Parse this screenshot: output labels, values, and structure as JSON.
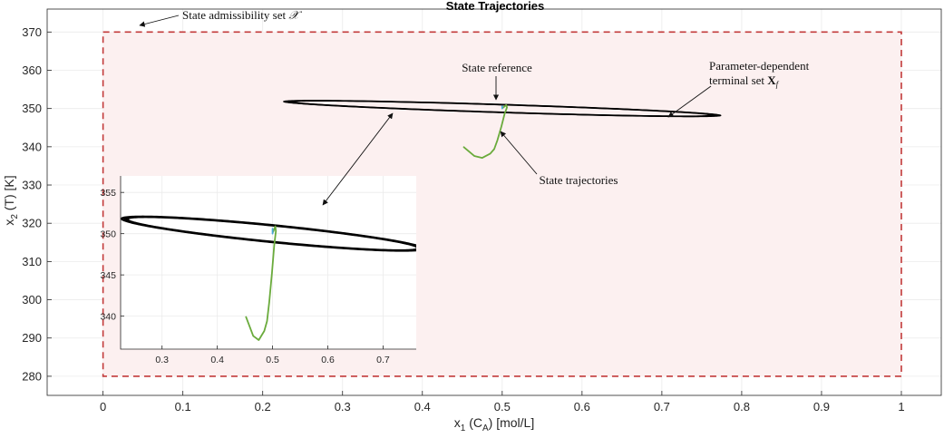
{
  "chart_data": {
    "type": "line",
    "title": "State Trajectories",
    "xlabel": "x",
    "xlabel_sub": "1",
    "xlabel_rest": " (C",
    "xlabel_sub2": "A",
    "xlabel_end": ") [mol/L]",
    "ylabel": "x",
    "ylabel_sub": "2",
    "ylabel_rest": " (T) [K]",
    "xlim": [
      -0.07,
      1.05
    ],
    "ylim": [
      275,
      376
    ],
    "xticks": [
      0,
      0.1,
      0.2,
      0.3,
      0.4,
      0.5,
      0.6,
      0.7,
      0.8,
      0.9,
      1
    ],
    "xtick_labels": [
      "0",
      "0.1",
      "0.2",
      "0.3",
      "0.4",
      "0.5",
      "0.6",
      "0.7",
      "0.8",
      "0.9",
      "1"
    ],
    "yticks": [
      280,
      290,
      300,
      310,
      320,
      330,
      340,
      350,
      360,
      370
    ],
    "ytick_labels": [
      "280",
      "290",
      "300",
      "310",
      "320",
      "330",
      "340",
      "350",
      "360",
      "370"
    ],
    "grid": true,
    "admissible_set": {
      "x": [
        0,
        1
      ],
      "y": [
        280,
        370
      ],
      "color": "#c23a3a",
      "fill": "#fcf0f0"
    },
    "terminal_sets": {
      "center": [
        0.5,
        350
      ],
      "angle_deg": 9.5,
      "color": "#000000",
      "ellipses": [
        {
          "a": 0.2655,
          "b": 0.94
        },
        {
          "a": 0.2685,
          "b": 0.97
        },
        {
          "a": 0.2715,
          "b": 1.0
        },
        {
          "a": 0.2745,
          "b": 1.03
        },
        {
          "a": 0.2775,
          "b": 1.06
        }
      ]
    },
    "series": [
      {
        "color": "#6aab3c",
        "points": [
          [
            0.452,
            339.9
          ],
          [
            0.465,
            337.6
          ],
          [
            0.475,
            337.1
          ],
          [
            0.485,
            338.2
          ],
          [
            0.49,
            339.4
          ],
          [
            0.494,
            341.7
          ],
          [
            0.499,
            345.3
          ],
          [
            0.503,
            348.6
          ],
          [
            0.506,
            350.3
          ],
          [
            0.505,
            350.9
          ],
          [
            0.501,
            350.2
          ]
        ]
      },
      {
        "color": "#4aa8d8",
        "points": [
          [
            0.5,
            350.2
          ],
          [
            0.5,
            350.6
          ],
          [
            0.5,
            350.0
          ]
        ]
      }
    ],
    "inset": {
      "xlim": [
        0.225,
        0.76
      ],
      "ylim": [
        336,
        357
      ],
      "xticks": [
        0.3,
        0.4,
        0.5,
        0.6,
        0.7
      ],
      "xtick_labels": [
        "0.3",
        "0.4",
        "0.5",
        "0.6",
        "0.7"
      ],
      "yticks": [
        340,
        345,
        350,
        355
      ],
      "ytick_labels": [
        "340",
        "345",
        "350",
        "355"
      ],
      "grid": true
    },
    "annotations": [
      {
        "text": "State admissibility set ",
        "math": "𝒳"
      },
      {
        "text": "State reference"
      },
      {
        "text": "Parameter-dependent",
        "text2": "terminal set ",
        "math": "X",
        "math_sub": "f"
      },
      {
        "text": "State trajectories"
      }
    ]
  }
}
